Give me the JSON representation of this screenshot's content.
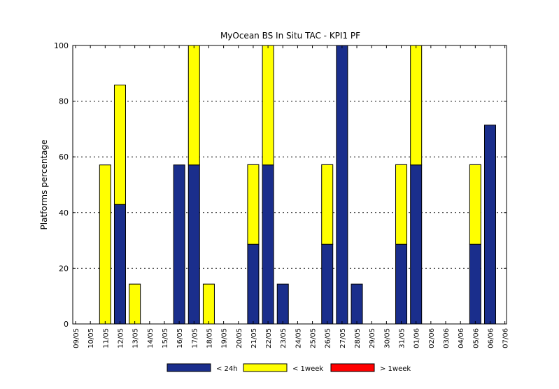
{
  "chart_data": {
    "type": "bar",
    "stacked": true,
    "title": "MyOcean  BS In Situ TAC - KPI1  PF",
    "xlabel": "",
    "ylabel": "Platforms percentage",
    "ylim": [
      0,
      100
    ],
    "yticks": [
      0,
      20,
      40,
      60,
      80,
      100
    ],
    "grid": "horizontal-dotted",
    "legend_position": "bottom",
    "categories": [
      "09/05",
      "10/05",
      "11/05",
      "12/05",
      "13/05",
      "14/05",
      "15/05",
      "16/05",
      "17/05",
      "18/05",
      "19/05",
      "20/05",
      "21/05",
      "22/05",
      "23/05",
      "24/05",
      "25/05",
      "26/05",
      "27/05",
      "28/05",
      "29/05",
      "30/05",
      "31/05",
      "01/06",
      "02/06",
      "03/06",
      "04/06",
      "05/06",
      "06/06",
      "07/06"
    ],
    "series": [
      {
        "name": "< 24h",
        "color": "#1a2e8c",
        "values": [
          0,
          0,
          0,
          42.9,
          0,
          0,
          0,
          57.1,
          57.1,
          0,
          0,
          0,
          28.6,
          57.1,
          14.3,
          0,
          0,
          28.6,
          100,
          14.3,
          0,
          0,
          28.6,
          57.1,
          0,
          0,
          0,
          28.6,
          71.4,
          0
        ]
      },
      {
        "name": "< 1week",
        "color": "#ffff00",
        "values": [
          0,
          0,
          57.1,
          42.9,
          14.3,
          0,
          0,
          0,
          42.9,
          14.3,
          0,
          0,
          28.6,
          42.9,
          0,
          0,
          0,
          28.6,
          0,
          0,
          0,
          0,
          28.6,
          42.9,
          0,
          0,
          0,
          28.6,
          0,
          0
        ]
      },
      {
        "name": "> 1week",
        "color": "#ff0000",
        "values": [
          0,
          0,
          0,
          0,
          0,
          0,
          0,
          0,
          0,
          0,
          0,
          0,
          0,
          0,
          0,
          0,
          0,
          0,
          0,
          0,
          0,
          0,
          0,
          0,
          0,
          0,
          0,
          0,
          0,
          0
        ]
      }
    ]
  }
}
